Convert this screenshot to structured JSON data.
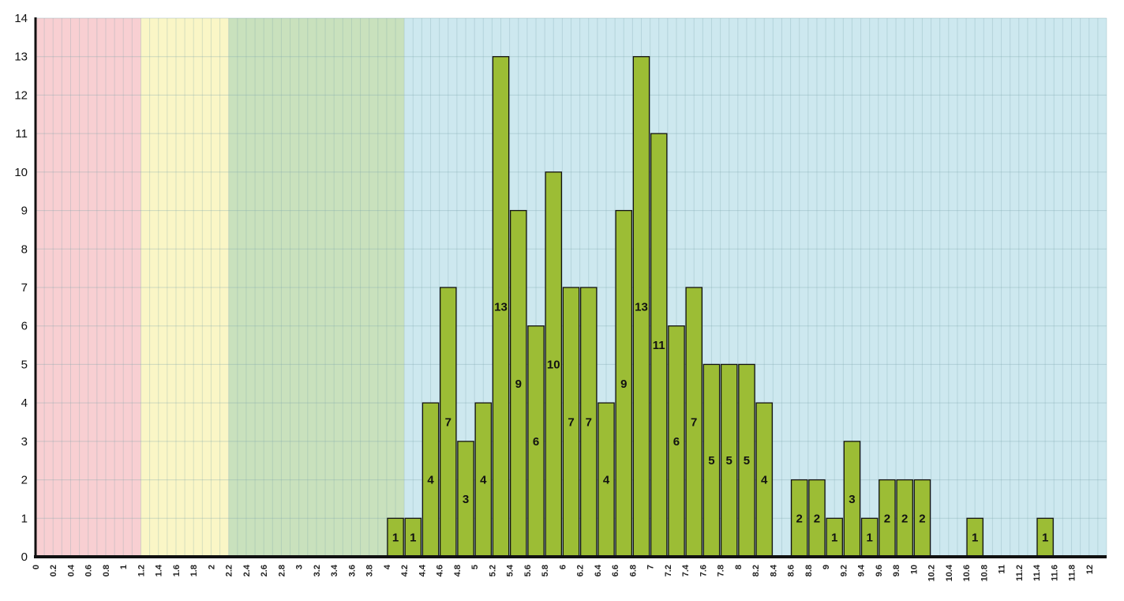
{
  "chart_data": {
    "type": "bar",
    "title": "",
    "xlabel": "",
    "ylabel": "",
    "xlim": [
      0,
      12
    ],
    "ylim": [
      0,
      14
    ],
    "bin_width": 0.2,
    "grid": true,
    "x_ticks": [
      "0",
      "0.2",
      "0.4",
      "0.6",
      "0.8",
      "1",
      "1.2",
      "1.4",
      "1.6",
      "1.8",
      "2",
      "2.2",
      "2.4",
      "2.6",
      "2.8",
      "3",
      "3.2",
      "3.4",
      "3.6",
      "3.8",
      "4",
      "4.2",
      "4.4",
      "4.6",
      "4.8",
      "5",
      "5.2",
      "5.4",
      "5.6",
      "5.8",
      "6",
      "6.2",
      "6.4",
      "6.6",
      "6.8",
      "7",
      "7.2",
      "7.4",
      "7.6",
      "7.8",
      "8",
      "8.2",
      "8.4",
      "8.6",
      "8.8",
      "9",
      "9.2",
      "9.4",
      "9.6",
      "9.8",
      "10",
      "10.2",
      "10.4",
      "10.6",
      "10.8",
      "11",
      "11.2",
      "11.4",
      "11.6",
      "11.8",
      "12"
    ],
    "y_ticks": [
      "0",
      "1",
      "2",
      "3",
      "4",
      "5",
      "6",
      "7",
      "8",
      "9",
      "10",
      "11",
      "12",
      "13",
      "14"
    ],
    "background_bands": [
      {
        "from": 0,
        "to": 1.2,
        "color": "#f8cfd2"
      },
      {
        "from": 1.2,
        "to": 2.2,
        "color": "#faf6c6"
      },
      {
        "from": 2.2,
        "to": 4.2,
        "color": "#c9e1bd"
      },
      {
        "from": 4.2,
        "to": 12.2,
        "color": "#cde8ef"
      }
    ],
    "bar_color": "#9cbd35",
    "bar_edge_color": "#111111",
    "bars": [
      {
        "x": 4.0,
        "value": 1
      },
      {
        "x": 4.2,
        "value": 1
      },
      {
        "x": 4.4,
        "value": 4
      },
      {
        "x": 4.6,
        "value": 7
      },
      {
        "x": 4.8,
        "value": 3
      },
      {
        "x": 5.0,
        "value": 4
      },
      {
        "x": 5.2,
        "value": 13
      },
      {
        "x": 5.4,
        "value": 9
      },
      {
        "x": 5.6,
        "value": 6
      },
      {
        "x": 5.8,
        "value": 10
      },
      {
        "x": 6.0,
        "value": 7
      },
      {
        "x": 6.2,
        "value": 7
      },
      {
        "x": 6.4,
        "value": 4
      },
      {
        "x": 6.6,
        "value": 9
      },
      {
        "x": 6.8,
        "value": 13
      },
      {
        "x": 7.0,
        "value": 11
      },
      {
        "x": 7.2,
        "value": 6
      },
      {
        "x": 7.4,
        "value": 7
      },
      {
        "x": 7.6,
        "value": 5
      },
      {
        "x": 7.8,
        "value": 5
      },
      {
        "x": 8.0,
        "value": 5
      },
      {
        "x": 8.2,
        "value": 4
      },
      {
        "x": 8.6,
        "value": 2
      },
      {
        "x": 8.8,
        "value": 2
      },
      {
        "x": 9.0,
        "value": 1
      },
      {
        "x": 9.2,
        "value": 3
      },
      {
        "x": 9.4,
        "value": 1
      },
      {
        "x": 9.6,
        "value": 2
      },
      {
        "x": 9.8,
        "value": 2
      },
      {
        "x": 10.0,
        "value": 2
      },
      {
        "x": 10.6,
        "value": 1
      },
      {
        "x": 11.4,
        "value": 1
      }
    ]
  }
}
